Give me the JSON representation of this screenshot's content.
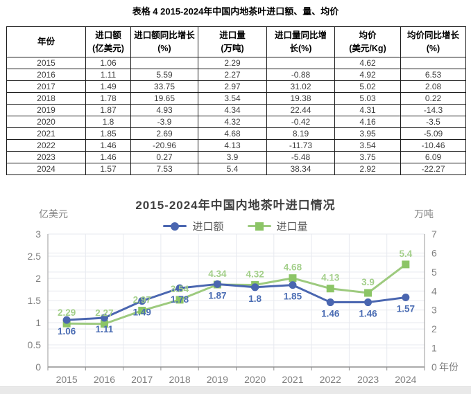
{
  "document": {
    "table_caption": "表格 4 2015-2024年中国内地茶叶进口额、量、均价"
  },
  "table": {
    "columns": [
      "年份",
      "进口额\n(亿美元)",
      "进口额同比增长\n(%)",
      "进口量\n(万吨)",
      "进口量同比增\n长(%)",
      "均价\n(美元/Kg)",
      "均价同比增长\n(%)"
    ],
    "rows": [
      [
        "2015",
        "1.06",
        "",
        "2.29",
        "",
        "4.62",
        ""
      ],
      [
        "2016",
        "1.11",
        "5.59",
        "2.27",
        "-0.88",
        "4.92",
        "6.53"
      ],
      [
        "2017",
        "1.49",
        "33.75",
        "2.97",
        "31.02",
        "5.02",
        "2.08"
      ],
      [
        "2018",
        "1.78",
        "19.65",
        "3.54",
        "19.38",
        "5.03",
        "0.22"
      ],
      [
        "2019",
        "1.87",
        "4.93",
        "4.34",
        "22.44",
        "4.31",
        "-14.3"
      ],
      [
        "2020",
        "1.8",
        "-3.9",
        "4.32",
        "-0.42",
        "4.16",
        "-3.5"
      ],
      [
        "2021",
        "1.85",
        "2.69",
        "4.68",
        "8.19",
        "3.95",
        "-5.09"
      ],
      [
        "2022",
        "1.46",
        "-20.96",
        "4.13",
        "-11.73",
        "3.54",
        "-10.46"
      ],
      [
        "2023",
        "1.46",
        "0.27",
        "3.9",
        "-5.48",
        "3.75",
        "6.09"
      ],
      [
        "2024",
        "1.57",
        "7.53",
        "5.4",
        "38.34",
        "2.92",
        "-22.27"
      ]
    ]
  },
  "chart_data": {
    "type": "line",
    "title": "2015-2024年中国内地茶叶进口情况",
    "categories": [
      "2015",
      "2016",
      "2017",
      "2018",
      "2019",
      "2020",
      "2021",
      "2022",
      "2023",
      "2024"
    ],
    "series": [
      {
        "id": "import-value",
        "name": "进口额",
        "axis": "left",
        "marker": "circle",
        "line_color": "#4a66b0",
        "marker_color": "#4a66b0",
        "label_color": "#4a6cb3",
        "label_position": "below",
        "values": [
          1.06,
          1.11,
          1.49,
          1.78,
          1.87,
          1.8,
          1.85,
          1.46,
          1.46,
          1.57
        ]
      },
      {
        "id": "import-volume",
        "name": "进口量",
        "axis": "right",
        "marker": "square",
        "line_color": "#9dca7e",
        "marker_color": "#8cc566",
        "label_color": "#a3cf8a",
        "label_position": "above",
        "values": [
          2.29,
          2.27,
          2.97,
          3.54,
          4.34,
          4.32,
          4.68,
          4.13,
          3.9,
          5.4
        ]
      }
    ],
    "left_axis": {
      "label": "亿美元",
      "min": 0,
      "max": 3,
      "ticks": [
        0,
        0.5,
        1,
        1.5,
        2,
        2.5,
        3
      ]
    },
    "right_axis": {
      "label": "万吨",
      "min": 0,
      "max": 7,
      "ticks": [
        0,
        1,
        2,
        3,
        4,
        5,
        6,
        7
      ]
    },
    "xlabel": "年份",
    "grid": true,
    "legend_position": "top-center"
  }
}
